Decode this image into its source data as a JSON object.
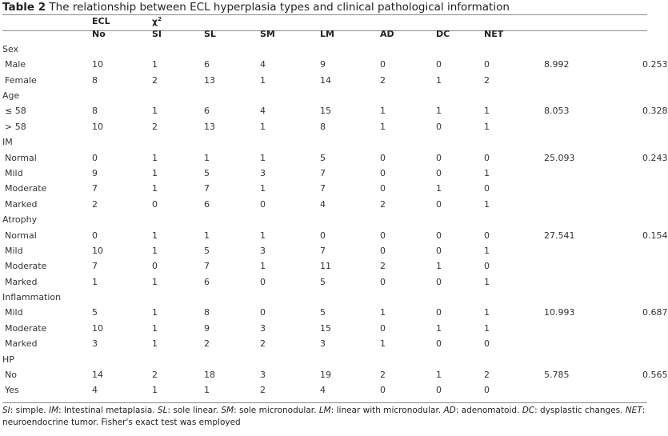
{
  "caption": {
    "label": "Table 2",
    "title": "The relationship between ECL hyperplasia types and clinical pathological information"
  },
  "header": {
    "ecl": "ECL",
    "chi_base": "χ",
    "chi_sup": "2",
    "columns": [
      "No",
      "SI",
      "SL",
      "SM",
      "LM",
      "AD",
      "DC",
      "NET"
    ]
  },
  "groups": [
    {
      "name": "Sex",
      "rows": [
        {
          "label": "Male",
          "values": [
            "10",
            "1",
            "6",
            "4",
            "9",
            "0",
            "0",
            "0"
          ],
          "chi2": "8.992",
          "p": "0.253"
        },
        {
          "label": "Female",
          "values": [
            "8",
            "2",
            "13",
            "1",
            "14",
            "2",
            "1",
            "2"
          ],
          "chi2": "",
          "p": ""
        }
      ]
    },
    {
      "name": "Age",
      "rows": [
        {
          "label": "≤ 58",
          "values": [
            "8",
            "1",
            "6",
            "4",
            "15",
            "1",
            "1",
            "1"
          ],
          "chi2": "8.053",
          "p": "0.328"
        },
        {
          "label": "> 58",
          "values": [
            "10",
            "2",
            "13",
            "1",
            "8",
            "1",
            "0",
            "1"
          ],
          "chi2": "",
          "p": ""
        }
      ]
    },
    {
      "name": "IM",
      "rows": [
        {
          "label": "Normal",
          "values": [
            "0",
            "1",
            "1",
            "1",
            "5",
            "0",
            "0",
            "0"
          ],
          "chi2": "25.093",
          "p": "0.243"
        },
        {
          "label": "Mild",
          "values": [
            "9",
            "1",
            "5",
            "3",
            "7",
            "0",
            "0",
            "1"
          ],
          "chi2": "",
          "p": ""
        },
        {
          "label": "Moderate",
          "values": [
            "7",
            "1",
            "7",
            "1",
            "7",
            "0",
            "1",
            "0"
          ],
          "chi2": "",
          "p": ""
        },
        {
          "label": "Marked",
          "values": [
            "2",
            "0",
            "6",
            "0",
            "4",
            "2",
            "0",
            "1"
          ],
          "chi2": "",
          "p": ""
        }
      ]
    },
    {
      "name": "Atrophy",
      "rows": [
        {
          "label": "Normal",
          "values": [
            "0",
            "1",
            "1",
            "1",
            "0",
            "0",
            "0",
            "0"
          ],
          "chi2": "27.541",
          "p": "0.154"
        },
        {
          "label": "Mild",
          "values": [
            "10",
            "1",
            "5",
            "3",
            "7",
            "0",
            "0",
            "1"
          ],
          "chi2": "",
          "p": ""
        },
        {
          "label": "Moderate",
          "values": [
            "7",
            "0",
            "7",
            "1",
            "11",
            "2",
            "1",
            "0"
          ],
          "chi2": "",
          "p": ""
        },
        {
          "label": "Marked",
          "values": [
            "1",
            "1",
            "6",
            "0",
            "5",
            "0",
            "0",
            "1"
          ],
          "chi2": "",
          "p": ""
        }
      ]
    },
    {
      "name": "Inflammation",
      "rows": [
        {
          "label": "Mild",
          "values": [
            "5",
            "1",
            "8",
            "0",
            "5",
            "1",
            "0",
            "1"
          ],
          "chi2": "10.993",
          "p": "0.687"
        },
        {
          "label": "Moderate",
          "values": [
            "10",
            "1",
            "9",
            "3",
            "15",
            "0",
            "1",
            "1"
          ],
          "chi2": "",
          "p": ""
        },
        {
          "label": "Marked",
          "values": [
            "3",
            "1",
            "2",
            "2",
            "3",
            "1",
            "0",
            "0"
          ],
          "chi2": "",
          "p": ""
        }
      ]
    },
    {
      "name": "HP",
      "rows": [
        {
          "label": "No",
          "values": [
            "14",
            "2",
            "18",
            "3",
            "19",
            "2",
            "1",
            "2"
          ],
          "chi2": "5.785",
          "p": "0.565"
        },
        {
          "label": "Yes",
          "values": [
            "4",
            "1",
            "1",
            "2",
            "4",
            "0",
            "0",
            "0"
          ],
          "chi2": "",
          "p": ""
        }
      ]
    }
  ],
  "footnote": [
    {
      "abbr": "SI",
      "text": ": simple. "
    },
    {
      "abbr": "IM",
      "text": ": Intestinal metaplasia. "
    },
    {
      "abbr": "SL",
      "text": ": sole linear. "
    },
    {
      "abbr": "SM",
      "text": ": sole micronodular. "
    },
    {
      "abbr": "LM",
      "text": ": linear with micronodular. "
    },
    {
      "abbr": "AD",
      "text": ": adenomatoid. "
    },
    {
      "abbr": "DC",
      "text": ": dysplastic changes. "
    },
    {
      "abbr": "NET",
      "text": ": neuroendocrine tumor. Fisher's exact test was employed"
    }
  ]
}
